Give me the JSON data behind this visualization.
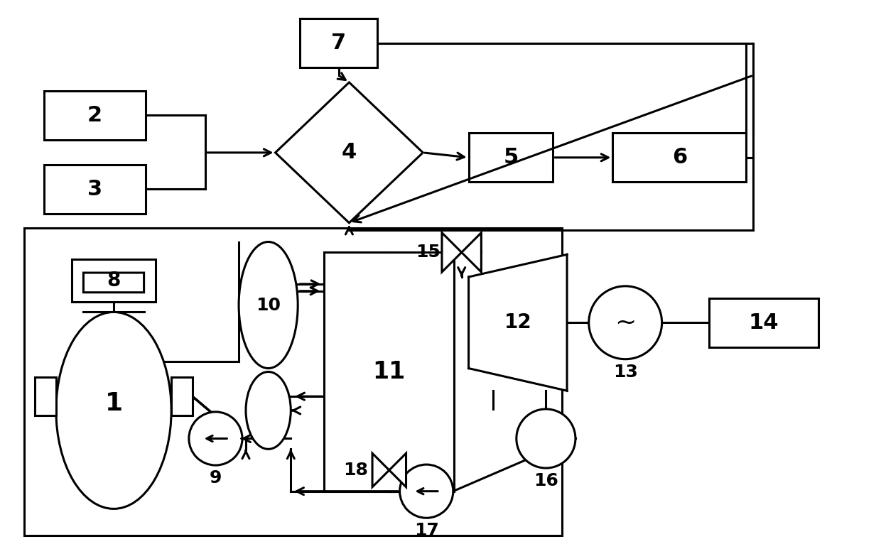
{
  "bg_color": "#ffffff",
  "lc": "#000000",
  "lw": 2.2,
  "fig_w": 12.4,
  "fig_h": 7.73
}
